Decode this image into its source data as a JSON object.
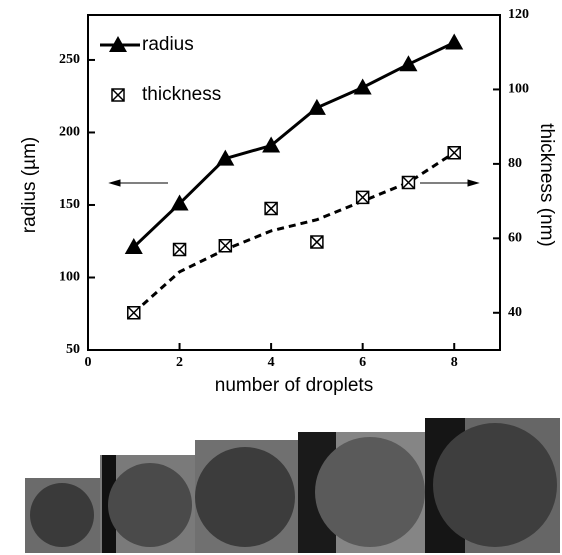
{
  "chart_data": {
    "type": "line",
    "x_label": "number of droplets",
    "y_label": "radius (µm)",
    "y2_label": "thickness (nm)",
    "x": [
      1,
      2,
      3,
      4,
      5,
      6,
      7,
      8
    ],
    "series": [
      {
        "name": "radius",
        "color": "#000000",
        "values": [
          121,
          151,
          182,
          191,
          217,
          231,
          247,
          262
        ]
      },
      {
        "name": "thickness",
        "color": "#000000",
        "axis": "y2",
        "values": [
          40,
          57,
          58,
          68,
          59,
          71,
          75,
          83
        ]
      }
    ],
    "trend": {
      "axis": "y2",
      "values": [
        40,
        51,
        57,
        62,
        65,
        70,
        75,
        83
      ]
    },
    "xlim": [
      0,
      9
    ],
    "xticks": [
      0,
      2,
      4,
      6,
      8
    ],
    "ylim": [
      50,
      281
    ],
    "yticks": [
      50,
      100,
      150,
      200,
      250
    ],
    "y2lim": [
      30,
      120
    ],
    "y2ticks": [
      40,
      60,
      80,
      100,
      120
    ]
  }
}
